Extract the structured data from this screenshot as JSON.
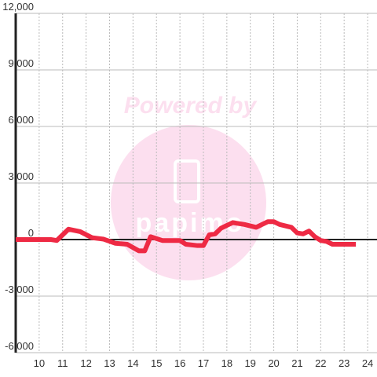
{
  "chart_data": {
    "type": "line",
    "watermark": {
      "text": "Powered by",
      "logo": "papimo"
    },
    "x": [
      9,
      10,
      10.5,
      10.75,
      11.25,
      11.75,
      12.25,
      12.75,
      13.25,
      13.75,
      14.25,
      14.5,
      14.75,
      15.25,
      16,
      16.25,
      16.75,
      17,
      17.25,
      17.5,
      17.75,
      18.25,
      18.75,
      19.25,
      19.75,
      20,
      20.25,
      20.75,
      21,
      21.25,
      21.5,
      21.75,
      22,
      22.25,
      22.5,
      23,
      23.5
    ],
    "series": [
      {
        "color": "#ee2a44",
        "values": [
          0,
          0,
          0,
          -50,
          550,
          420,
          100,
          20,
          -200,
          -250,
          -600,
          -600,
          150,
          -50,
          -50,
          -250,
          -320,
          -320,
          250,
          300,
          600,
          900,
          800,
          650,
          950,
          950,
          800,
          650,
          350,
          300,
          450,
          150,
          -50,
          -100,
          -250,
          -250,
          -250
        ]
      }
    ],
    "xlim": [
      9,
      24.4
    ],
    "xticks": [
      10,
      11,
      12,
      13,
      14,
      15,
      16,
      17,
      18,
      19,
      20,
      21,
      22,
      23,
      24
    ],
    "ylim": [
      -6000,
      12000
    ],
    "yticks": [
      {
        "value": -6000,
        "label": "-6,000"
      },
      {
        "value": -3000,
        "label": "-3,000"
      },
      0,
      {
        "value": 3000,
        "label": "3,000"
      },
      {
        "value": 6000,
        "label": "6,000"
      },
      {
        "value": 9000,
        "label": "9,000"
      },
      {
        "value": 12000,
        "label": "12,000"
      }
    ],
    "grid": true
  }
}
